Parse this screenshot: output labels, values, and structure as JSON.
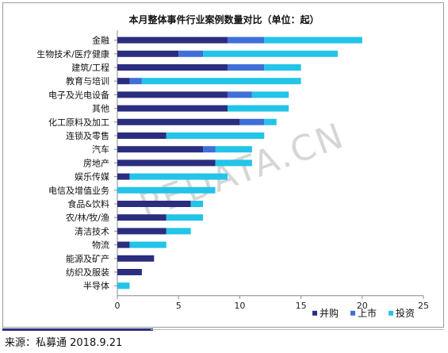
{
  "chart_data": {
    "type": "bar",
    "orientation": "horizontal",
    "stacked": true,
    "title": "本月整体事件行业案例数量对比（单位：起）",
    "categories": [
      "金融",
      "生物技术/医疗健康",
      "建筑/工程",
      "教育与培训",
      "电子及光电设备",
      "其他",
      "化工原料及加工",
      "连锁及零售",
      "汽车",
      "房地产",
      "娱乐传媒",
      "电信及增值业务",
      "食品&饮料",
      "农/林/牧/渔",
      "清洁技术",
      "物流",
      "能源及矿产",
      "纺织及服装",
      "半导体"
    ],
    "series": [
      {
        "name": "并购",
        "color": "#2b2d7e",
        "values": [
          9,
          5,
          9,
          1,
          9,
          9,
          10,
          4,
          7,
          8,
          1,
          0,
          6,
          4,
          4,
          1,
          3,
          2,
          0
        ]
      },
      {
        "name": "上市",
        "color": "#3f6fd8",
        "values": [
          3,
          2,
          3,
          1,
          2,
          0,
          2,
          0,
          1,
          0,
          0,
          0,
          0,
          0,
          0,
          0,
          0,
          0,
          0
        ]
      },
      {
        "name": "投资",
        "color": "#22c4e8",
        "values": [
          8,
          11,
          3,
          13,
          3,
          5,
          1,
          8,
          3,
          3,
          8,
          8,
          1,
          3,
          2,
          3,
          0,
          0,
          1
        ]
      }
    ],
    "xlim": [
      0,
      25
    ],
    "xticks": [
      "0",
      "5",
      "10",
      "15",
      "20",
      "25"
    ],
    "legend_position": "bottom-right"
  },
  "watermark": "PEDATA.CN",
  "source": "来源：私募通 2018.9.21"
}
